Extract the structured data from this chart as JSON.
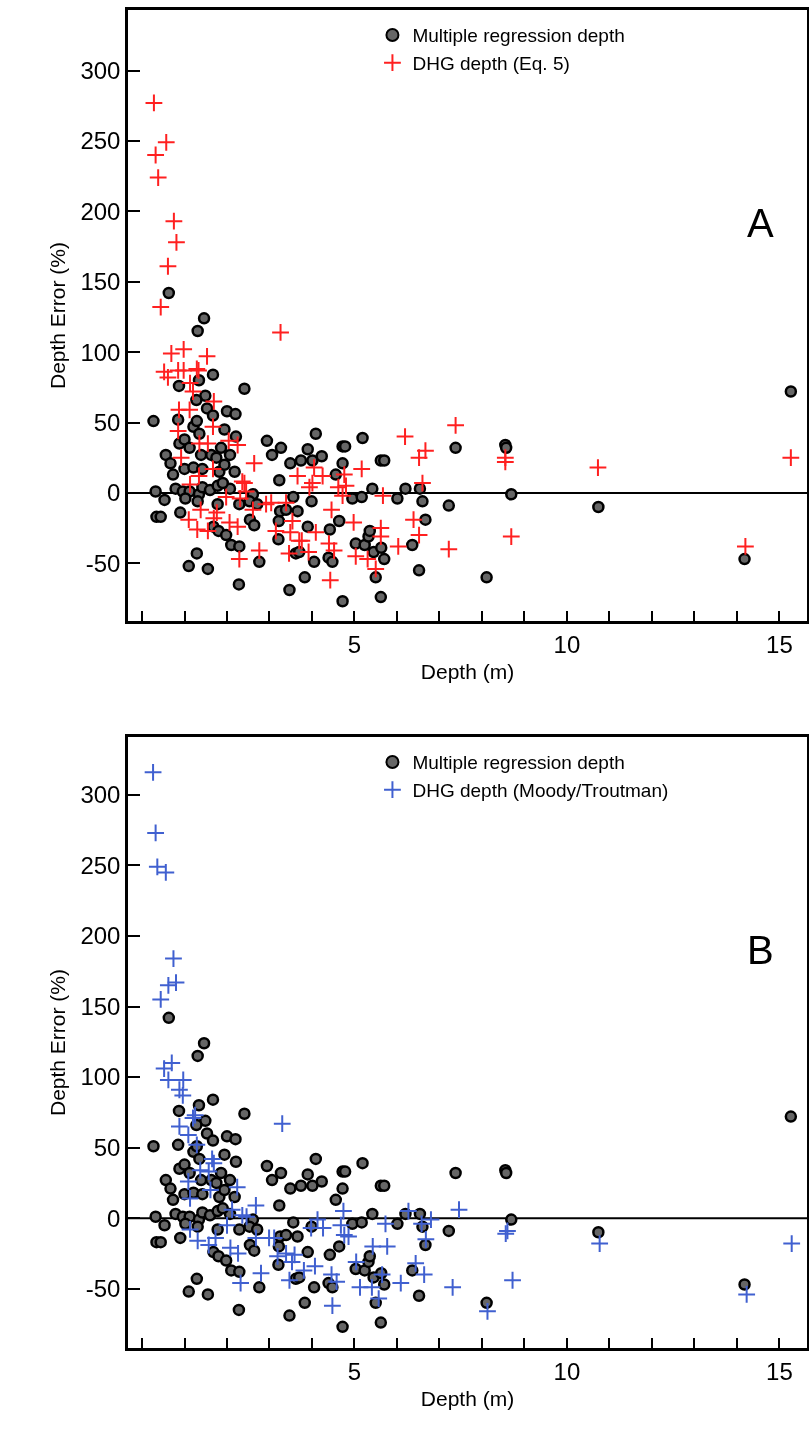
{
  "chart_data": [
    {
      "type": "scatter",
      "xlabel": "Depth (m)",
      "ylabel": "Depth Error (%)",
      "annotations": [
        "A"
      ],
      "legend": "top right",
      "grid": false,
      "xlim": [
        -0.33,
        15.65
      ],
      "ylim": [
        -91,
        343
      ],
      "xticks": [
        {
          "value": 0,
          "label": null
        },
        {
          "value": 1,
          "label": null
        },
        {
          "value": 2,
          "label": null
        },
        {
          "value": 3,
          "label": null
        },
        {
          "value": 4,
          "label": null
        },
        5,
        {
          "value": 6,
          "label": null
        },
        {
          "value": 7,
          "label": null
        },
        {
          "value": 8,
          "label": null
        },
        {
          "value": 9,
          "label": null
        },
        10,
        {
          "value": 11,
          "label": null
        },
        {
          "value": 12,
          "label": null
        },
        {
          "value": 13,
          "label": null
        },
        {
          "value": 14,
          "label": null
        },
        15
      ],
      "yticks": [
        -50,
        0,
        50,
        100,
        150,
        200,
        250,
        300
      ],
      "ref_lines": [
        {
          "axis": "y",
          "value": 0,
          "color": "#000000"
        }
      ],
      "series": [
        {
          "name": "Multiple regression depth",
          "color": "#666666",
          "marker": "circle",
          "x": [
            1.46,
            1.31,
            1.67,
            0.87,
            1.34,
            2.41,
            1.49,
            1.28,
            1.53,
            1.67,
            2.0,
            2.2,
            0.27,
            0.85,
            1.21,
            1.29,
            1.35,
            1.94,
            2.21,
            0.88,
            1.0,
            1.12,
            1.39,
            1.63,
            1.86,
            2.07,
            1.75,
            0.56,
            0.67,
            0.73,
            1.0,
            1.21,
            1.42,
            1.82,
            2.18,
            1.94,
            2.94,
            3.27,
            4.09,
            3.06,
            3.49,
            3.74,
            3.9,
            4.01,
            4.23,
            4.72,
            4.78,
            4.72,
            5.19,
            5.62,
            5.7,
            4.56,
            3.23,
            7.38,
            0.32,
            0.53,
            0.79,
            0.96,
            1.12,
            1.34,
            1.02,
            1.31,
            1.42,
            1.6,
            1.78,
            2.07,
            1.9,
            2.61,
            2.53,
            2.71,
            2.29,
            1.78,
            3.56,
            3.99,
            4.95,
            5.17,
            5.42,
            6.01,
            6.2,
            6.54,
            6.6,
            6.67,
            7.22,
            0.34,
            0.44,
            0.9,
            2.54,
            2.64,
            3.22,
            3.25,
            3.39,
            3.66,
            3.9,
            4.42,
            4.64,
            1.68,
            1.8,
            1.98,
            2.1,
            2.29,
            3.21,
            3.62,
            3.7,
            5.03,
            5.24,
            5.33,
            5.36,
            5.45,
            5.63,
            5.7,
            6.36,
            1.29,
            1.1,
            1.55,
            2.76,
            4.05,
            4.39,
            4.48,
            3.83,
            5.5,
            6.52,
            2.28,
            3.47,
            4.72,
            5.62,
            0.63,
            15.27,
            8.55,
            8.57,
            8.69,
            8.11,
            10.74,
            14.18
          ],
          "values": [
            124,
            115,
            84,
            76,
            80,
            74,
            69,
            66,
            60,
            55,
            58,
            56,
            51,
            52,
            47,
            51,
            42,
            45,
            40,
            35,
            38,
            32,
            27,
            27,
            32,
            27,
            25,
            27,
            21,
            13,
            17,
            18,
            17,
            15,
            15,
            20,
            37,
            32,
            42,
            27,
            21,
            23,
            31,
            23,
            26,
            33,
            33,
            21,
            39,
            23,
            23,
            13,
            9,
            32,
            1,
            -5,
            3,
            1,
            1,
            -1,
            -4,
            -6,
            4,
            2,
            5,
            3,
            7,
            -1,
            -6,
            -8,
            -8,
            -8,
            -3,
            -6,
            -4,
            -3,
            3,
            -4,
            3,
            3,
            -6,
            -19,
            -9,
            -17,
            -17,
            -14,
            -19,
            -23,
            -20,
            -13,
            -12,
            -13,
            -24,
            -26,
            -20,
            -24,
            -27,
            -30,
            -37,
            -38,
            -33,
            -43,
            -42,
            -36,
            -37,
            -31,
            -27,
            -42,
            -39,
            -47,
            -37,
            -43,
            -52,
            -54,
            -49,
            -49,
            -46,
            -49,
            -60,
            -60,
            -55,
            -65,
            -69,
            -77,
            -74,
            142,
            72,
            34,
            32,
            -1,
            -60,
            -10,
            -47
          ]
        },
        {
          "name": "DHG depth (Eq. 5)",
          "color": "#ff2020",
          "marker": "cross",
          "x": [
            0.28,
            0.57,
            0.32,
            0.38,
            0.75,
            0.81,
            0.61,
            0.44,
            3.26,
            0.69,
            0.98,
            1.53,
            0.52,
            0.61,
            0.85,
            0.98,
            1.29,
            1.33,
            1.13,
            1.2,
            1.69,
            0.87,
            1.12,
            0.85,
            1.67,
            1.35,
            1.55,
            2.04,
            2.25,
            0.92,
            2.64,
            7.38,
            6.19,
            6.67,
            6.52,
            5.17,
            4.05,
            3.66,
            4.25,
            4.01,
            3.94,
            4.62,
            4.76,
            4.8,
            2.36,
            2.41,
            1.34,
            1.67,
            1.13,
            1.98,
            2.31,
            2.45,
            2.92,
            3.04,
            3.39,
            5.67,
            6.6,
            4.72,
            1.38,
            1.76,
            1.1,
            1.3,
            1.55,
            1.69,
            2.06,
            2.25,
            2.61,
            3.54,
            3.15,
            3.49,
            4.09,
            4.46,
            4.98,
            5.62,
            5.62,
            6.39,
            6.52,
            3.76,
            3.7,
            3.92,
            3.46,
            2.76,
            2.29,
            4.4,
            4.52,
            5.03,
            5.31,
            5.5,
            6.03,
            7.22,
            4.43,
            8.55,
            8.55,
            8.69,
            10.73,
            14.2,
            15.27
          ],
          "values": [
            277,
            249,
            240,
            224,
            193,
            178,
            161,
            132,
            114,
            99,
            102,
            97,
            86,
            82,
            87,
            87,
            88,
            87,
            78,
            72,
            65,
            59,
            59,
            44,
            47,
            35,
            35,
            37,
            34,
            25,
            21,
            48,
            40,
            30,
            25,
            17,
            18,
            12,
            12,
            7,
            4,
            4,
            13,
            5,
            8,
            7,
            12,
            17,
            6,
            -3,
            -4,
            1,
            -8,
            -7,
            -7,
            -2,
            7,
            -2,
            -12,
            -14,
            -19,
            -26,
            -27,
            -18,
            -21,
            -24,
            -12,
            -20,
            -27,
            -28,
            -28,
            -12,
            -21,
            -25,
            -31,
            -19,
            -30,
            -34,
            -34,
            -42,
            -43,
            -41,
            -47,
            -36,
            -41,
            -45,
            -47,
            -54,
            -38,
            -40,
            -62,
            25,
            22,
            -31,
            18,
            -38,
            25
          ]
        }
      ]
    },
    {
      "type": "scatter",
      "xlabel": "Depth (m)",
      "ylabel": "Depth Error (%)",
      "annotations": [
        "B"
      ],
      "legend": "top right",
      "grid": false,
      "xlim": [
        -0.33,
        15.65
      ],
      "ylim": [
        -92,
        341
      ],
      "xticks": [
        {
          "value": 0,
          "label": null
        },
        {
          "value": 1,
          "label": null
        },
        {
          "value": 2,
          "label": null
        },
        {
          "value": 3,
          "label": null
        },
        {
          "value": 4,
          "label": null
        },
        5,
        {
          "value": 6,
          "label": null
        },
        {
          "value": 7,
          "label": null
        },
        {
          "value": 8,
          "label": null
        },
        {
          "value": 9,
          "label": null
        },
        10,
        {
          "value": 11,
          "label": null
        },
        {
          "value": 12,
          "label": null
        },
        {
          "value": 13,
          "label": null
        },
        {
          "value": 14,
          "label": null
        },
        15
      ],
      "yticks": [
        -50,
        0,
        50,
        100,
        150,
        200,
        250,
        300
      ],
      "ref_lines": [
        {
          "axis": "y",
          "value": 0,
          "color": "#000000"
        }
      ],
      "series": [
        {
          "name": "Multiple regression depth",
          "color": "#666666",
          "marker": "circle",
          "x": [
            1.46,
            1.31,
            1.67,
            0.87,
            1.34,
            2.41,
            1.49,
            1.28,
            1.53,
            1.67,
            2.0,
            2.2,
            0.27,
            0.85,
            1.21,
            1.29,
            1.35,
            1.94,
            2.21,
            0.88,
            1.0,
            1.12,
            1.39,
            1.63,
            1.86,
            2.07,
            1.75,
            0.56,
            0.67,
            0.73,
            1.0,
            1.21,
            1.42,
            1.82,
            2.18,
            1.94,
            2.94,
            3.27,
            4.09,
            3.06,
            3.49,
            3.74,
            3.9,
            4.01,
            4.23,
            4.72,
            4.78,
            4.72,
            5.19,
            5.62,
            5.7,
            4.56,
            3.23,
            7.38,
            0.32,
            0.53,
            0.79,
            0.96,
            1.12,
            1.34,
            1.02,
            1.31,
            1.42,
            1.6,
            1.78,
            2.07,
            1.9,
            2.61,
            2.53,
            2.71,
            2.29,
            1.78,
            3.56,
            3.99,
            4.95,
            5.17,
            5.42,
            6.01,
            6.2,
            6.54,
            6.6,
            6.67,
            7.22,
            0.34,
            0.44,
            0.9,
            2.54,
            2.64,
            3.22,
            3.25,
            3.39,
            3.66,
            3.9,
            4.42,
            4.64,
            1.68,
            1.8,
            1.98,
            2.1,
            2.29,
            3.21,
            3.62,
            3.7,
            5.03,
            5.24,
            5.33,
            5.36,
            5.45,
            5.63,
            5.7,
            6.36,
            1.29,
            1.1,
            1.55,
            2.76,
            4.05,
            4.39,
            4.48,
            3.83,
            5.5,
            6.52,
            2.28,
            3.47,
            4.72,
            5.62,
            0.63,
            15.27,
            8.55,
            8.57,
            8.69,
            8.11,
            10.74,
            14.18
          ],
          "values": [
            124,
            115,
            84,
            76,
            80,
            74,
            69,
            66,
            60,
            55,
            58,
            56,
            51,
            52,
            47,
            51,
            42,
            45,
            40,
            35,
            38,
            32,
            27,
            27,
            32,
            27,
            25,
            27,
            21,
            13,
            17,
            18,
            17,
            15,
            15,
            20,
            37,
            32,
            42,
            27,
            21,
            23,
            31,
            23,
            26,
            33,
            33,
            21,
            39,
            23,
            23,
            13,
            9,
            32,
            1,
            -5,
            3,
            1,
            1,
            -1,
            -4,
            -6,
            4,
            2,
            5,
            3,
            7,
            -1,
            -6,
            -8,
            -8,
            -8,
            -3,
            -6,
            -4,
            -3,
            3,
            -4,
            3,
            3,
            -6,
            -19,
            -9,
            -17,
            -17,
            -14,
            -19,
            -23,
            -20,
            -13,
            -12,
            -13,
            -24,
            -26,
            -20,
            -24,
            -27,
            -30,
            -37,
            -38,
            -33,
            -43,
            -42,
            -36,
            -37,
            -31,
            -27,
            -42,
            -39,
            -47,
            -37,
            -43,
            -52,
            -54,
            -49,
            -49,
            -46,
            -49,
            -60,
            -60,
            -55,
            -65,
            -69,
            -77,
            -74,
            142,
            72,
            34,
            32,
            -1,
            -60,
            -10,
            -47
          ]
        },
        {
          "name": "DHG depth (Moody/Troutman)",
          "color": "#4060d0",
          "marker": "cross",
          "x": [
            0.26,
            0.32,
            0.36,
            0.56,
            0.74,
            0.8,
            0.62,
            0.44,
            0.7,
            0.52,
            0.62,
            0.97,
            0.88,
            0.96,
            1.25,
            1.2,
            0.88,
            1.09,
            3.3,
            1.29,
            1.65,
            1.69,
            1.37,
            1.57,
            1.09,
            1.61,
            2.24,
            2.68,
            1.13,
            2.12,
            2.36,
            2.46,
            2.0,
            1.13,
            1.31,
            1.57,
            1.73,
            2.08,
            2.26,
            2.68,
            2.99,
            3.11,
            3.39,
            3.53,
            3.19,
            3.59,
            3.81,
            3.47,
            4.07,
            3.98,
            4.26,
            4.13,
            4.74,
            4.68,
            4.86,
            4.76,
            4.46,
            4.58,
            4.48,
            5.04,
            5.43,
            5.77,
            5.73,
            5.13,
            5.41,
            5.57,
            5.65,
            6.09,
            6.27,
            6.58,
            6.8,
            6.44,
            6.64,
            6.68,
            7.31,
            7.46,
            2.32,
            2.8,
            8.6,
            8.56,
            8.72,
            8.13,
            10.77,
            14.23,
            15.29
          ],
          "values": [
            316,
            273,
            249,
            245,
            184,
            167,
            165,
            155,
            110,
            106,
            98,
            98,
            91,
            87,
            73,
            71,
            65,
            59,
            67,
            52,
            42,
            39,
            34,
            33,
            26,
            20,
            22,
            9,
            14,
            6,
            2,
            1,
            -5,
            -8,
            -16,
            -19,
            -14,
            -21,
            -25,
            -14,
            -14,
            -14,
            -25,
            -31,
            -27,
            -26,
            -37,
            -44,
            -34,
            -7,
            -7,
            -1,
            5,
            -5,
            -13,
            -12,
            -40,
            -45,
            -62,
            -31,
            -20,
            -20,
            -4,
            -49,
            -49,
            -57,
            -40,
            -46,
            5,
            -4,
            -1,
            -32,
            -40,
            -15,
            -49,
            6,
            -46,
            -39,
            -9,
            -11,
            -44,
            -66,
            -18,
            -54,
            -18
          ]
        }
      ]
    }
  ]
}
